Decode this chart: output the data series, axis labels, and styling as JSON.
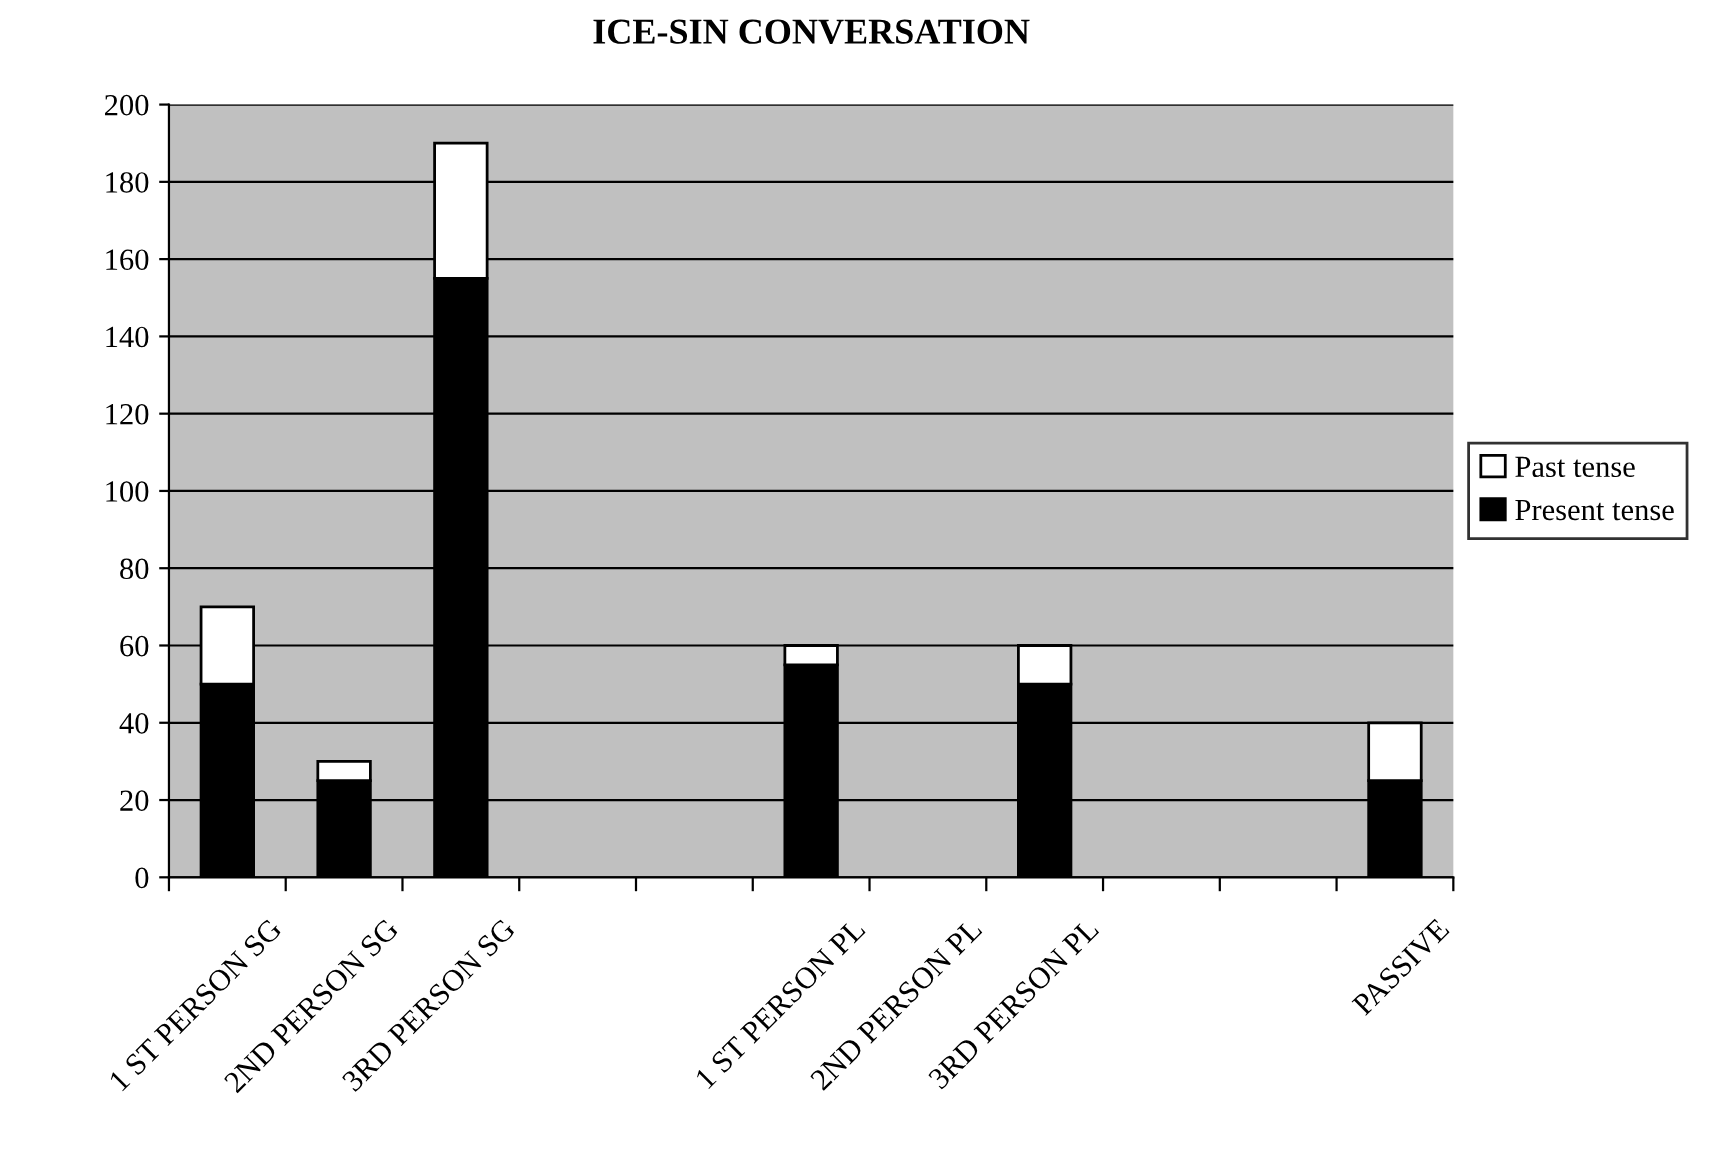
{
  "chart_data": {
    "type": "bar",
    "title": "ICE-SIN CONVERSATION",
    "stacked": true,
    "categories": [
      "1 ST PERSON SG",
      "2ND PERSON SG",
      "3RD PERSON SG",
      null,
      null,
      "1 ST PERSON PL",
      "2ND PERSON PL",
      "3RD PERSON PL",
      null,
      null,
      "PASSIVE"
    ],
    "series": [
      {
        "name": "Present tense",
        "color": "#000000",
        "values": [
          50,
          25,
          155,
          null,
          null,
          55,
          null,
          50,
          null,
          null,
          25
        ]
      },
      {
        "name": "Past tense",
        "color": "#ffffff",
        "values": [
          20,
          5,
          35,
          null,
          null,
          5,
          null,
          10,
          null,
          null,
          15
        ]
      }
    ],
    "ylim": [
      0,
      200
    ],
    "yticks": [
      0,
      20,
      40,
      60,
      80,
      100,
      120,
      140,
      160,
      180,
      200
    ],
    "grid": "y",
    "legend": "right"
  }
}
